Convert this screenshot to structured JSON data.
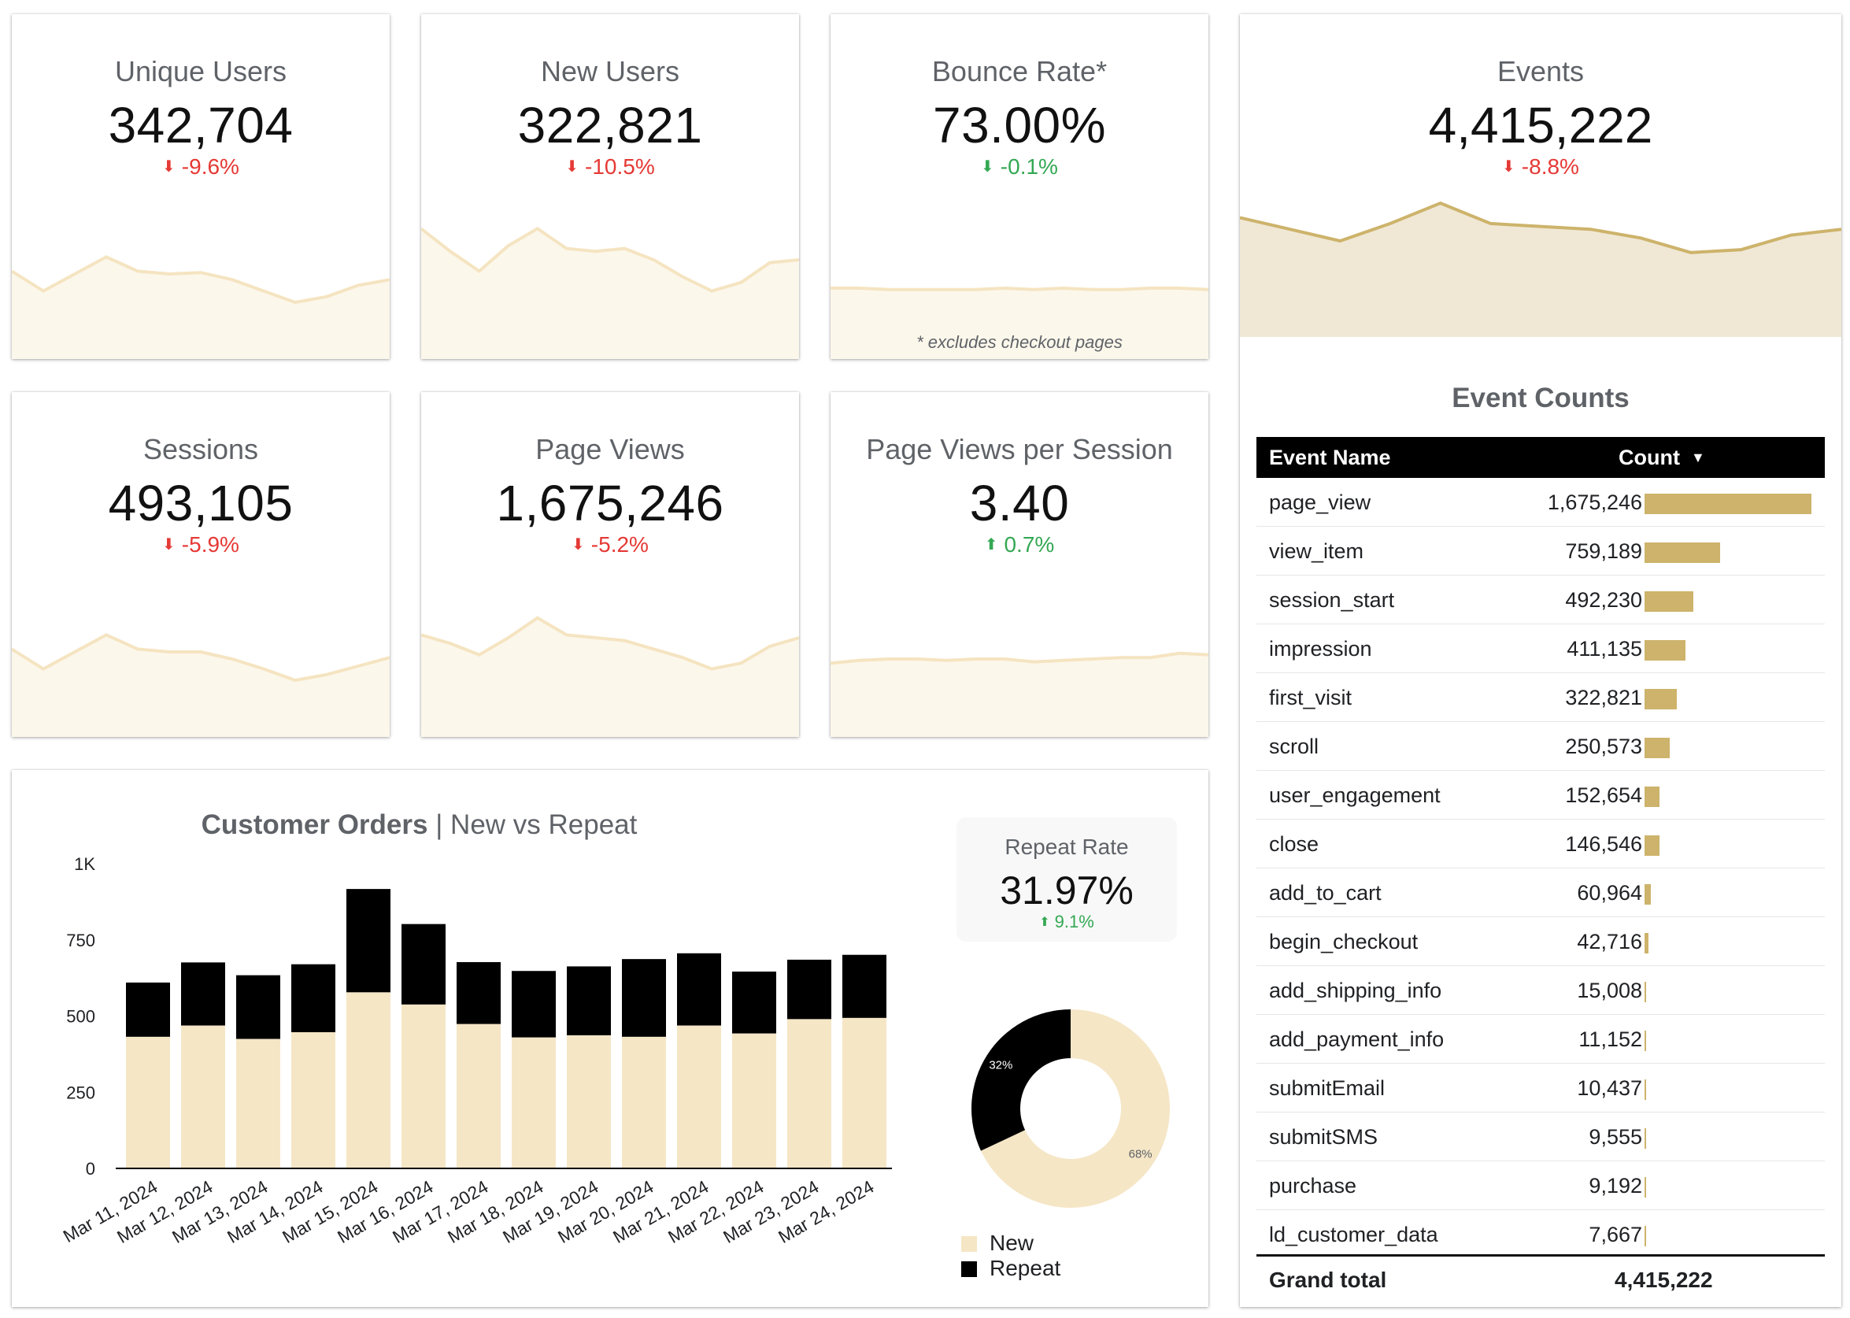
{
  "colors": {
    "spark_fill": "#fcf7eb",
    "spark_line": "#f5e4c1",
    "events_fill": "#f0e8d5",
    "events_line": "#cdb36b",
    "bar_new": "#f5e6c6",
    "bar_repeat": "#000000",
    "count_bar": "#cdb36b",
    "delta_down": "#e53935",
    "delta_up": "#34a853"
  },
  "kpis": [
    {
      "title": "Unique Users",
      "value": "342,704",
      "delta": "-9.6%",
      "direction": "down",
      "color": "#e53935",
      "spark": [
        0.62,
        0.48,
        0.6,
        0.72,
        0.62,
        0.6,
        0.61,
        0.56,
        0.48,
        0.4,
        0.44,
        0.52,
        0.56
      ]
    },
    {
      "title": "New Users",
      "value": "322,821",
      "delta": "-10.5%",
      "direction": "down",
      "color": "#e53935",
      "spark": [
        0.92,
        0.76,
        0.62,
        0.8,
        0.92,
        0.78,
        0.76,
        0.78,
        0.7,
        0.58,
        0.48,
        0.54,
        0.68,
        0.7
      ]
    },
    {
      "title": "Bounce Rate*",
      "value": "73.00%",
      "delta": "-0.1%",
      "direction": "down",
      "color": "#34a853",
      "spark": [
        0.5,
        0.5,
        0.49,
        0.49,
        0.49,
        0.49,
        0.5,
        0.49,
        0.5,
        0.49,
        0.49,
        0.5,
        0.5,
        0.49
      ],
      "footnote": "* excludes checkout pages"
    },
    {
      "title": "Sessions",
      "value": "493,105",
      "delta": "-5.9%",
      "direction": "down",
      "color": "#e53935",
      "spark": [
        0.62,
        0.48,
        0.6,
        0.72,
        0.62,
        0.6,
        0.6,
        0.55,
        0.48,
        0.4,
        0.44,
        0.5,
        0.56
      ]
    },
    {
      "title": "Page Views",
      "value": "1,675,246",
      "delta": "-5.2%",
      "direction": "down",
      "color": "#e53935",
      "spark": [
        0.72,
        0.66,
        0.58,
        0.7,
        0.84,
        0.72,
        0.7,
        0.68,
        0.62,
        0.56,
        0.48,
        0.52,
        0.64,
        0.7
      ]
    },
    {
      "title": "Page Views per Session",
      "value": "3.40",
      "delta": "0.7%",
      "direction": "up",
      "color": "#34a853",
      "spark": [
        0.52,
        0.54,
        0.55,
        0.55,
        0.54,
        0.55,
        0.55,
        0.53,
        0.54,
        0.55,
        0.56,
        0.56,
        0.59,
        0.58
      ]
    }
  ],
  "events_card": {
    "title": "Events",
    "value": "4,415,222",
    "delta": "-8.8%",
    "spark": [
      0.82,
      0.74,
      0.66,
      0.78,
      0.92,
      0.78,
      0.76,
      0.74,
      0.68,
      0.58,
      0.6,
      0.7,
      0.74
    ]
  },
  "event_table": {
    "title": "Event Counts",
    "col_name": "Event Name",
    "col_count": "Count",
    "rows": [
      {
        "name": "page_view",
        "count": "1,675,246",
        "value": 1675246
      },
      {
        "name": "view_item",
        "count": "759,189",
        "value": 759189
      },
      {
        "name": "session_start",
        "count": "492,230",
        "value": 492230
      },
      {
        "name": "impression",
        "count": "411,135",
        "value": 411135
      },
      {
        "name": "first_visit",
        "count": "322,821",
        "value": 322821
      },
      {
        "name": "scroll",
        "count": "250,573",
        "value": 250573
      },
      {
        "name": "user_engagement",
        "count": "152,654",
        "value": 152654
      },
      {
        "name": "close",
        "count": "146,546",
        "value": 146546
      },
      {
        "name": "add_to_cart",
        "count": "60,964",
        "value": 60964
      },
      {
        "name": "begin_checkout",
        "count": "42,716",
        "value": 42716
      },
      {
        "name": "add_shipping_info",
        "count": "15,008",
        "value": 15008
      },
      {
        "name": "add_payment_info",
        "count": "11,152",
        "value": 11152
      },
      {
        "name": "submitEmail",
        "count": "10,437",
        "value": 10437
      },
      {
        "name": "submitSMS",
        "count": "9,555",
        "value": 9555
      },
      {
        "name": "purchase",
        "count": "9,192",
        "value": 9192
      },
      {
        "name": "ld_customer_data",
        "count": "7,667",
        "value": 7667
      }
    ],
    "grand_total_label": "Grand total",
    "grand_total": "4,415,222"
  },
  "orders": {
    "title_bold": "Customer Orders",
    "title_rest": " | New vs Repeat"
  },
  "repeat_rate": {
    "title": "Repeat Rate",
    "value": "31.97%",
    "delta": "9.1%"
  },
  "chart_data": [
    {
      "type": "bar",
      "stacked": true,
      "title": "Customer Orders | New vs Repeat",
      "categories": [
        "Mar 11, 2024",
        "Mar 12, 2024",
        "Mar 13, 2024",
        "Mar 14, 2024",
        "Mar 15, 2024",
        "Mar 16, 2024",
        "Mar 17, 2024",
        "Mar 18, 2024",
        "Mar 19, 2024",
        "Mar 20, 2024",
        "Mar 21, 2024",
        "Mar 22, 2024",
        "Mar 23, 2024",
        "Mar 24, 2024"
      ],
      "series": [
        {
          "name": "New",
          "values": [
            432,
            469,
            425,
            447,
            578,
            538,
            474,
            430,
            437,
            432,
            469,
            443,
            490,
            494
          ]
        },
        {
          "name": "Repeat",
          "values": [
            178,
            207,
            209,
            223,
            339,
            264,
            203,
            218,
            226,
            255,
            237,
            203,
            195,
            207
          ]
        }
      ],
      "yticks": [
        "0",
        "250",
        "500",
        "750",
        "1K"
      ],
      "ylim": [
        0,
        1000
      ]
    },
    {
      "type": "pie",
      "donut": true,
      "categories": [
        "New",
        "Repeat"
      ],
      "values": [
        68,
        32
      ],
      "labels": [
        "68%",
        "32%"
      ],
      "legend": "bottom"
    }
  ]
}
